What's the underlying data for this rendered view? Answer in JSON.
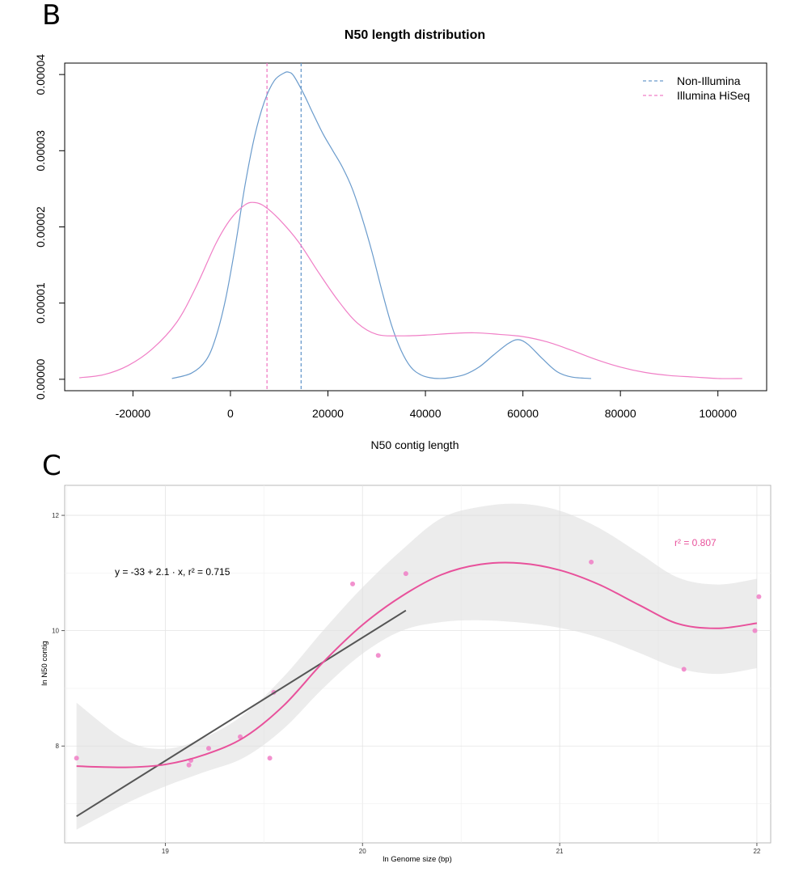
{
  "panels": {
    "b": "B",
    "c": "C"
  },
  "chart_data": [
    {
      "type": "line",
      "title": "N50 length distribution",
      "xlabel": "N50 contig length",
      "ylabel": "",
      "xlim": [
        -34000,
        110000
      ],
      "ylim": [
        -1.5e-06,
        4.15e-05
      ],
      "x_ticks": [
        -20000,
        0,
        20000,
        40000,
        60000,
        80000,
        100000
      ],
      "x_tick_labels": [
        "-20000",
        "0",
        "20000",
        "40000",
        "60000",
        "80000",
        "100000"
      ],
      "y_ticks": [
        0,
        1e-05,
        2e-05,
        3e-05,
        4e-05
      ],
      "y_tick_labels": [
        "0.00000",
        "0.00001",
        "0.00002",
        "0.00003",
        "0.00004"
      ],
      "legend_position": "top-right",
      "grid": false,
      "series": [
        {
          "name": "Non-Illumina",
          "color": "#6a9bcc",
          "x": [
            -12000,
            -8000,
            -5000,
            -3000,
            -1000,
            1000,
            3000,
            5000,
            7000,
            9000,
            11000,
            12000,
            13000,
            15000,
            17000,
            19000,
            21000,
            23000,
            25000,
            27000,
            29000,
            31000,
            33000,
            35000,
            37000,
            39000,
            41000,
            43000,
            45000,
            48000,
            51000,
            54000,
            57000,
            59000,
            61000,
            64000,
            67000,
            70000,
            74000
          ],
          "values": [
            1e-07,
            8e-07,
            2.5e-06,
            5.5e-06,
            1.05e-05,
            1.75e-05,
            2.55e-05,
            3.2e-05,
            3.65e-05,
            3.92e-05,
            4.02e-05,
            4.03e-05,
            3.98e-05,
            3.75e-05,
            3.48e-05,
            3.22e-05,
            3e-05,
            2.78e-05,
            2.5e-05,
            2.12e-05,
            1.68e-05,
            1.18e-05,
            7.2e-06,
            3.8e-06,
            1.6e-06,
            6e-07,
            2e-07,
            1e-07,
            2e-07,
            6e-07,
            1.6e-06,
            3.2e-06,
            4.7e-06,
            5.2e-06,
            4.6e-06,
            2.7e-06,
            1e-06,
            3e-07,
            1e-07
          ]
        },
        {
          "name": "Illumina HiSeq",
          "color": "#f07ec6",
          "x": [
            -31000,
            -26000,
            -21000,
            -16000,
            -11000,
            -7000,
            -3000,
            0,
            3000,
            5000,
            7000,
            10000,
            14000,
            18000,
            22000,
            26000,
            30000,
            35000,
            40000,
            45000,
            50000,
            55000,
            60000,
            65000,
            70000,
            75000,
            80000,
            85000,
            90000,
            95000,
            100000,
            105000
          ],
          "values": [
            2e-07,
            6e-07,
            1.8e-06,
            4e-06,
            7.5e-06,
            1.22e-05,
            1.78e-05,
            2.1e-05,
            2.29e-05,
            2.32e-05,
            2.27e-05,
            2.1e-05,
            1.8e-05,
            1.41e-05,
            1.04e-05,
            7.4e-06,
            5.9e-06,
            5.7e-06,
            5.8e-06,
            6e-06,
            6.1e-06,
            5.9e-06,
            5.6e-06,
            4.9e-06,
            3.8e-06,
            2.6e-06,
            1.6e-06,
            9e-07,
            5e-07,
            3e-07,
            1e-07,
            1e-07
          ]
        }
      ],
      "reference_lines": [
        {
          "series": "Non-Illumina",
          "x": 14500,
          "color": "#6a9bcc"
        },
        {
          "series": "Illumina HiSeq",
          "x": 7500,
          "color": "#f07ec6"
        }
      ]
    },
    {
      "type": "scatter",
      "title": "",
      "xlabel": "ln Genome size (bp)",
      "ylabel": "ln N50 contig",
      "xlim": [
        18.49,
        22.07
      ],
      "ylim": [
        6.32,
        12.52
      ],
      "x_ticks": [
        19,
        20,
        21,
        22
      ],
      "x_tick_labels": [
        "19",
        "20",
        "21",
        "22"
      ],
      "y_ticks": [
        8,
        10,
        12
      ],
      "y_tick_labels": [
        "8",
        "10",
        "12"
      ],
      "grid": true,
      "points": {
        "color": "#f07ec6",
        "x": [
          18.55,
          19.12,
          19.13,
          19.22,
          19.38,
          19.53,
          19.55,
          19.95,
          20.08,
          20.22,
          21.16,
          21.63,
          21.99,
          22.01
        ],
        "y": [
          7.79,
          7.67,
          7.75,
          7.96,
          8.16,
          7.79,
          8.93,
          10.81,
          9.57,
          10.99,
          11.19,
          9.33,
          10.0,
          10.59
        ]
      },
      "linear_fit": {
        "color": "#555555",
        "x": [
          18.55,
          20.22
        ],
        "y": [
          6.78,
          10.35
        ],
        "label": "y = -33 + 2.1 · x,  r² = 0.715"
      },
      "smooth_fit": {
        "color": "#e8519b",
        "band_color": "#e0e0e0",
        "label": "r² = 0.807",
        "x": [
          18.55,
          18.8,
          19.0,
          19.2,
          19.4,
          19.6,
          19.8,
          20.0,
          20.2,
          20.4,
          20.6,
          20.8,
          21.0,
          21.2,
          21.4,
          21.6,
          21.8,
          22.0
        ],
        "y": [
          7.65,
          7.63,
          7.68,
          7.85,
          8.15,
          8.7,
          9.45,
          10.1,
          10.6,
          10.97,
          11.15,
          11.17,
          11.05,
          10.8,
          10.45,
          10.12,
          10.04,
          10.13
        ],
        "lower": [
          6.55,
          7.0,
          7.3,
          7.55,
          7.8,
          8.3,
          9.0,
          9.6,
          10.0,
          10.15,
          10.18,
          10.14,
          10.05,
          9.88,
          9.62,
          9.35,
          9.25,
          9.35
        ],
        "upper": [
          8.75,
          8.1,
          7.95,
          8.15,
          8.55,
          9.2,
          10.0,
          10.75,
          11.4,
          11.95,
          12.15,
          12.2,
          12.08,
          11.78,
          11.35,
          10.92,
          10.8,
          10.9
        ]
      }
    }
  ]
}
